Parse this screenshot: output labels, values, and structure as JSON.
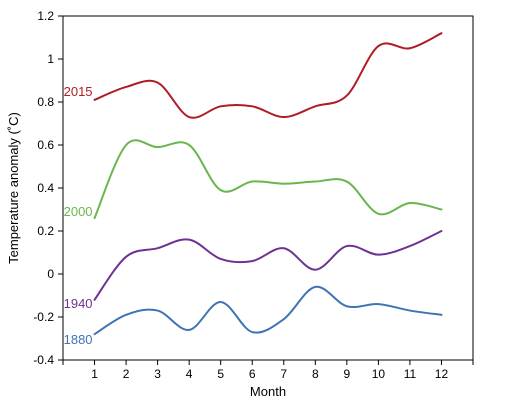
{
  "chart_data": {
    "type": "line",
    "xlabel": "Month",
    "ylabel": "Temperature anomaly (˚C)",
    "ylim": [
      -0.4,
      1.2
    ],
    "xlim": [
      0,
      13
    ],
    "x": [
      1,
      2,
      3,
      4,
      5,
      6,
      7,
      8,
      9,
      10,
      11,
      12
    ],
    "x_tick_labels": [
      "1",
      "2",
      "3",
      "4",
      "5",
      "6",
      "7",
      "8",
      "9",
      "10",
      "11",
      "12"
    ],
    "y_ticks": [
      -0.4,
      -0.2,
      0,
      0.2,
      0.4,
      0.6,
      0.8,
      1,
      1.2
    ],
    "y_tick_labels": [
      "-0.4",
      "-0.2",
      "0",
      "0.2",
      "0.4",
      "0.6",
      "0.8",
      "1",
      "1.2"
    ],
    "grid": false,
    "legend": "inline labels at left of each line",
    "series": [
      {
        "name": "2015",
        "color": "#b01c24",
        "values": [
          0.81,
          0.87,
          0.89,
          0.73,
          0.78,
          0.78,
          0.73,
          0.78,
          0.83,
          1.06,
          1.05,
          1.12
        ]
      },
      {
        "name": "2000",
        "color": "#6ab54e",
        "values": [
          0.26,
          0.6,
          0.59,
          0.6,
          0.39,
          0.43,
          0.42,
          0.43,
          0.43,
          0.28,
          0.33,
          0.3
        ]
      },
      {
        "name": "1940",
        "color": "#6f3192",
        "values": [
          -0.12,
          0.08,
          0.12,
          0.16,
          0.07,
          0.06,
          0.12,
          0.02,
          0.13,
          0.09,
          0.13,
          0.2
        ]
      },
      {
        "name": "1880",
        "color": "#3f74b4",
        "values": [
          -0.28,
          -0.19,
          -0.17,
          -0.26,
          -0.13,
          -0.27,
          -0.21,
          -0.06,
          -0.15,
          -0.14,
          -0.17,
          -0.19
        ]
      }
    ]
  }
}
